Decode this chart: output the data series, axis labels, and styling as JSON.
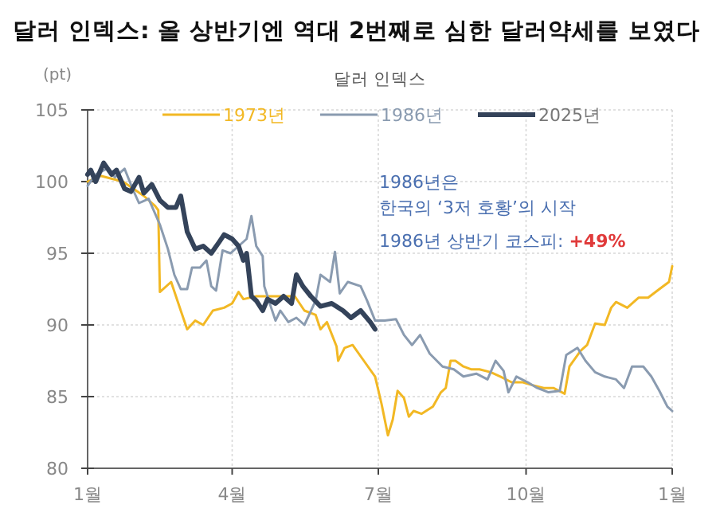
{
  "chart_data": {
    "type": "line",
    "title": "달러 인덱스: 올 상반기엔 역대 2번째로 심한 달러약세를 보였다",
    "subtitle": "달러 인덱스",
    "ylabel": "(pt)",
    "xlim": [
      "--01-01",
      "--12-31"
    ],
    "xticks": [
      {
        "value": "--01-01",
        "label": "1월"
      },
      {
        "value": "--04-01",
        "label": "4월"
      },
      {
        "value": "--07-01",
        "label": "7월"
      },
      {
        "value": "--10-01",
        "label": "10월"
      },
      {
        "value": "--12-31",
        "label": "1월"
      }
    ],
    "ylim": [
      80,
      105
    ],
    "yticks": [
      80,
      85,
      90,
      95,
      100,
      105
    ],
    "grid": true,
    "legend": "top",
    "line_style": "solid",
    "annotations": [
      "1986년은",
      "한국의 ‘3저 호황’의 시작",
      "1986년 상반기 코스피: **+49%**"
    ],
    "series": [
      {
        "name": "1973년",
        "color": "#f2b824",
        "x": [
          "--01-01",
          "--01-09",
          "--01-23",
          "--02-05",
          "--02-12",
          "--02-14",
          "--02-15",
          "--02-22",
          "--02-28",
          "--03-04",
          "--03-09",
          "--03-14",
          "--03-20",
          "--03-27",
          "--04-01",
          "--04-05",
          "--04-08",
          "--04-16",
          "--04-30",
          "--05-10",
          "--05-16",
          "--05-23",
          "--05-26",
          "--05-30",
          "--06-05",
          "--06-06",
          "--06-10",
          "--06-15",
          "--06-22",
          "--06-29",
          "--07-03",
          "--07-07",
          "--07-10",
          "--07-13",
          "--07-17",
          "--07-20",
          "--07-23",
          "--07-28",
          "--08-04",
          "--08-09",
          "--08-12",
          "--08-15",
          "--08-18",
          "--08-23",
          "--08-28",
          "--09-02",
          "--09-09",
          "--09-15",
          "--09-22",
          "--09-29",
          "--10-05",
          "--10-12",
          "--10-18",
          "--10-25",
          "--10-28",
          "--11-04",
          "--11-08",
          "--11-13",
          "--11-19",
          "--11-23",
          "--11-26",
          "--12-03",
          "--12-10",
          "--12-16",
          "--12-23",
          "--12-29",
          "--12-31"
        ],
        "values": [
          100,
          100.4,
          100,
          99,
          98.3,
          98,
          92.3,
          93,
          91,
          89.7,
          90.3,
          90,
          91,
          91.2,
          91.5,
          92.3,
          91.8,
          92,
          92,
          92,
          91,
          90.7,
          89.7,
          90.2,
          88.5,
          87.5,
          88.4,
          88.6,
          87.5,
          86.4,
          84.5,
          82.3,
          83.4,
          85.4,
          84.9,
          83.6,
          84,
          83.8,
          84.3,
          85.3,
          85.6,
          87.5,
          87.5,
          87.1,
          86.9,
          86.9,
          86.7,
          86.4,
          86,
          86,
          85.8,
          85.6,
          85.6,
          85.2,
          87.1,
          88.2,
          88.6,
          90.1,
          90,
          91.2,
          91.6,
          91.2,
          91.9,
          91.9,
          92.5,
          93,
          94.1
        ]
      },
      {
        "name": "1986년",
        "color": "#8a9bb0",
        "x": [
          "--01-01",
          "--01-06",
          "--01-13",
          "--01-18",
          "--01-24",
          "--01-29",
          "--02-02",
          "--02-08",
          "--02-15",
          "--02-20",
          "--02-24",
          "--02-28",
          "--03-04",
          "--03-07",
          "--03-12",
          "--03-16",
          "--03-19",
          "--03-22",
          "--03-26",
          "--03-31",
          "--04-05",
          "--04-10",
          "--04-13",
          "--04-16",
          "--04-20",
          "--04-21",
          "--04-25",
          "--04-28",
          "--05-01",
          "--05-06",
          "--05-11",
          "--05-16",
          "--05-23",
          "--05-26",
          "--06-01",
          "--06-04",
          "--06-07",
          "--06-12",
          "--06-20",
          "--06-24",
          "--06-29",
          "--07-05",
          "--07-12",
          "--07-17",
          "--07-22",
          "--07-27",
          "--08-02",
          "--08-10",
          "--08-17",
          "--08-23",
          "--08-31",
          "--09-07",
          "--09-12",
          "--09-17",
          "--09-20",
          "--09-25",
          "--10-02",
          "--10-08",
          "--10-15",
          "--10-22",
          "--10-26",
          "--11-02",
          "--11-07",
          "--11-13",
          "--11-19",
          "--11-26",
          "--12-01",
          "--12-06",
          "--12-13",
          "--12-18",
          "--12-23",
          "--12-28",
          "--12-31"
        ],
        "values": [
          99.7,
          100.5,
          100.9,
          100.3,
          100.9,
          99.5,
          98.5,
          98.8,
          97,
          95.3,
          93.5,
          92.5,
          92.5,
          94,
          94,
          94.5,
          92.7,
          92.4,
          95.2,
          95,
          95.5,
          96,
          97.6,
          95.5,
          94.8,
          92.7,
          91.3,
          90.3,
          91,
          90.2,
          90.5,
          90,
          91.7,
          93.5,
          93,
          95.1,
          92.2,
          93,
          92.7,
          91.7,
          90.3,
          90.3,
          90.4,
          89.3,
          88.6,
          89.3,
          88,
          87.1,
          86.9,
          86.4,
          86.6,
          86.2,
          87.5,
          86.8,
          85.3,
          86.4,
          86,
          85.6,
          85.3,
          85.4,
          87.9,
          88.4,
          87.5,
          86.7,
          86.4,
          86.2,
          85.6,
          87.1,
          87.1,
          86.4,
          85.4,
          84.3,
          84
        ]
      },
      {
        "name": "2025년",
        "color": "#34435a",
        "x": [
          "--01-01",
          "--01-03",
          "--01-06",
          "--01-11",
          "--01-16",
          "--01-19",
          "--01-24",
          "--01-28",
          "--02-02",
          "--02-05",
          "--02-10",
          "--02-15",
          "--02-20",
          "--02-25",
          "--02-28",
          "--03-04",
          "--03-09",
          "--03-14",
          "--03-19",
          "--03-24",
          "--03-27",
          "--04-01",
          "--04-05",
          "--04-08",
          "--04-10",
          "--04-13",
          "--04-16",
          "--04-20",
          "--04-23",
          "--04-28",
          "--05-03",
          "--05-08",
          "--05-11",
          "--05-15",
          "--05-20",
          "--05-26",
          "--06-02",
          "--06-09",
          "--06-14",
          "--06-20",
          "--06-26",
          "--06-29"
        ],
        "values": [
          100.5,
          100.8,
          100,
          101.3,
          100.5,
          100.8,
          99.5,
          99.3,
          100.3,
          99.2,
          99.8,
          98.7,
          98.2,
          98.2,
          99,
          96.5,
          95.3,
          95.5,
          95,
          95.8,
          96.3,
          96,
          95.5,
          94.5,
          95,
          92,
          91.7,
          91,
          91.8,
          91.5,
          92,
          91.5,
          93.5,
          92.7,
          92,
          91.3,
          91.5,
          91,
          90.5,
          91,
          90.2,
          89.7
        ]
      }
    ]
  }
}
